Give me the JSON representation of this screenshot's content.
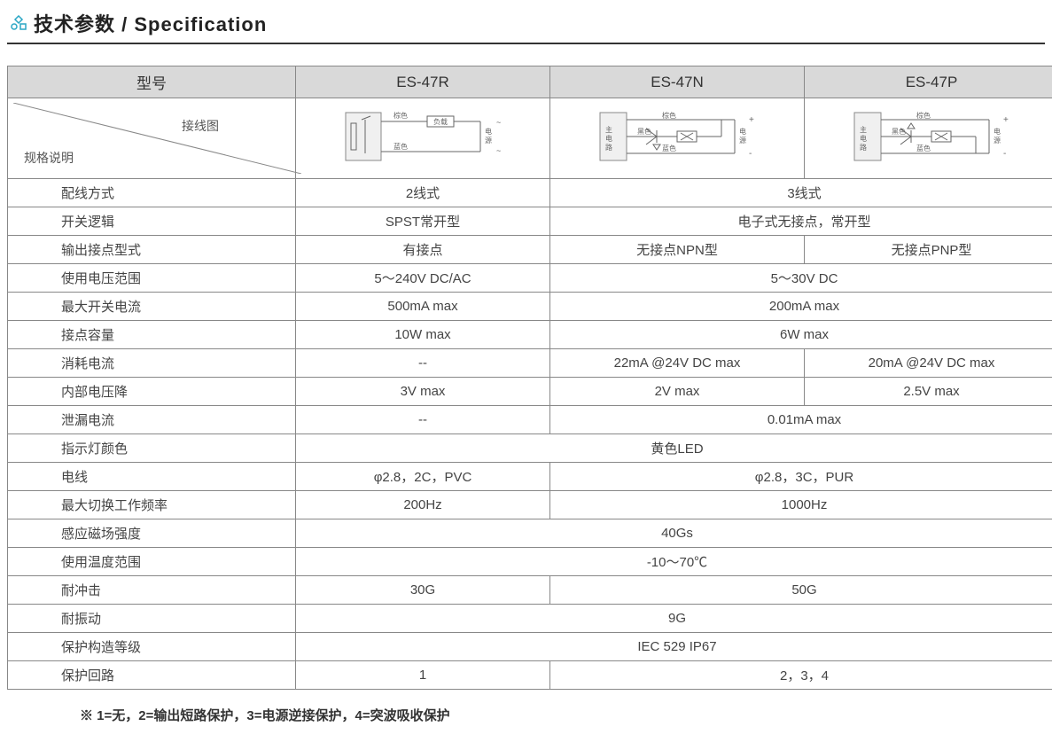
{
  "header": {
    "title_cn": "技术参数",
    "title_sep": " / ",
    "title_en": "Specification",
    "icon_color": "#2aa6c4"
  },
  "table": {
    "header_bg": "#d9d9d9",
    "border_color": "#888888",
    "text_color": "#444444",
    "col_model_label": "型号",
    "models": [
      "ES-47R",
      "ES-47N",
      "ES-47P"
    ],
    "wiring_label": "接线图",
    "spec_desc_label": "规格说明",
    "wiring_labels": {
      "brown": "棕色",
      "black": "黑色",
      "blue": "蓝色",
      "load": "负载",
      "power": "电源",
      "main": "主电路"
    },
    "rows": [
      {
        "label": "配线方式",
        "cells": [
          {
            "v": "2线式",
            "span": 1
          },
          {
            "v": "3线式",
            "span": 2
          }
        ]
      },
      {
        "label": "开关逻辑",
        "cells": [
          {
            "v": "SPST常开型",
            "span": 1
          },
          {
            "v": "电子式无接点，常开型",
            "span": 2
          }
        ]
      },
      {
        "label": "输出接点型式",
        "cells": [
          {
            "v": "有接点",
            "span": 1
          },
          {
            "v": "无接点NPN型",
            "span": 1
          },
          {
            "v": "无接点PNP型",
            "span": 1
          }
        ]
      },
      {
        "label": "使用电压范围",
        "cells": [
          {
            "v": "5～240V DC/AC",
            "span": 1
          },
          {
            "v": "5～30V DC",
            "span": 2
          }
        ]
      },
      {
        "label": "最大开关电流",
        "cells": [
          {
            "v": "500mA max",
            "span": 1
          },
          {
            "v": "200mA max",
            "span": 2
          }
        ]
      },
      {
        "label": "接点容量",
        "cells": [
          {
            "v": "10W max",
            "span": 1
          },
          {
            "v": "6W max",
            "span": 2
          }
        ]
      },
      {
        "label": "消耗电流",
        "cells": [
          {
            "v": "--",
            "span": 1
          },
          {
            "v": "22mA @24V DC max",
            "span": 1
          },
          {
            "v": "20mA @24V DC max",
            "span": 1
          }
        ]
      },
      {
        "label": "内部电压降",
        "cells": [
          {
            "v": "3V max",
            "span": 1
          },
          {
            "v": "2V max",
            "span": 1
          },
          {
            "v": "2.5V max",
            "span": 1
          }
        ]
      },
      {
        "label": "泄漏电流",
        "cells": [
          {
            "v": "--",
            "span": 1
          },
          {
            "v": "0.01mA max",
            "span": 2
          }
        ]
      },
      {
        "label": "指示灯颜色",
        "cells": [
          {
            "v": "黄色LED",
            "span": 3
          }
        ]
      },
      {
        "label": "电线",
        "cells": [
          {
            "v": "φ2.8，2C，PVC",
            "span": 1
          },
          {
            "v": "φ2.8，3C，PUR",
            "span": 2
          }
        ]
      },
      {
        "label": "最大切换工作频率",
        "cells": [
          {
            "v": "200Hz",
            "span": 1
          },
          {
            "v": "1000Hz",
            "span": 2
          }
        ]
      },
      {
        "label": "感应磁场强度",
        "cells": [
          {
            "v": "40Gs",
            "span": 3
          }
        ]
      },
      {
        "label": "使用温度范围",
        "cells": [
          {
            "v": "-10～70℃",
            "span": 3
          }
        ]
      },
      {
        "label": "耐冲击",
        "cells": [
          {
            "v": "30G",
            "span": 1
          },
          {
            "v": "50G",
            "span": 2
          }
        ]
      },
      {
        "label": "耐振动",
        "cells": [
          {
            "v": "9G",
            "span": 3
          }
        ]
      },
      {
        "label": "保护构造等级",
        "cells": [
          {
            "v": "IEC 529 IP67",
            "span": 3
          }
        ]
      },
      {
        "label": "保护回路",
        "cells": [
          {
            "v": "1",
            "span": 1
          },
          {
            "v": "2，3，4",
            "span": 2
          }
        ]
      }
    ]
  },
  "footnote": "※ 1=无，2=输出短路保护，3=电源逆接保护，4=突波吸收保护",
  "diagram_style": {
    "box_stroke": "#888888",
    "box_fill": "#f0f0f0",
    "line_stroke": "#666666",
    "label_fontsize": 8,
    "label_color": "#666666"
  }
}
